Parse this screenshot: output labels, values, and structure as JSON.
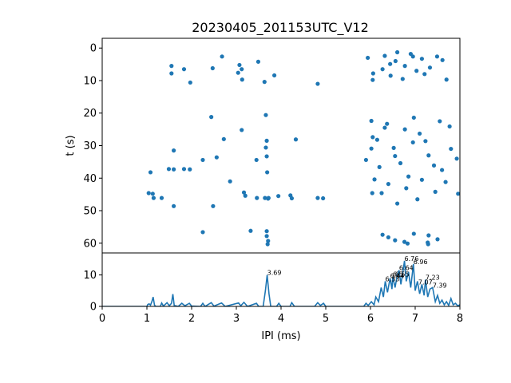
{
  "chart_data": {
    "title": "20230405_201153UTC_V12",
    "color": "#1f77b4",
    "panels": [
      {
        "type": "scatter",
        "ylabel": "t (s)",
        "xlim": [
          0,
          8
        ],
        "ylim": [
          63,
          -3
        ],
        "y_inverted": true,
        "yticks": [
          "0",
          "10",
          "20",
          "30",
          "40",
          "50",
          "60"
        ],
        "points": [
          [
            1.55,
            5.5
          ],
          [
            1.55,
            7.8
          ],
          [
            1.83,
            6.5
          ],
          [
            1.97,
            10.6
          ],
          [
            2.47,
            6.2
          ],
          [
            2.68,
            2.6
          ],
          [
            3.07,
            5.2
          ],
          [
            3.04,
            7.6
          ],
          [
            3.12,
            6.5
          ],
          [
            3.13,
            9.7
          ],
          [
            3.49,
            4.2
          ],
          [
            3.63,
            10.4
          ],
          [
            3.85,
            8.4
          ],
          [
            4.82,
            11.0
          ],
          [
            2.44,
            21.2
          ],
          [
            2.72,
            28.0
          ],
          [
            3.12,
            25.2
          ],
          [
            3.66,
            20.6
          ],
          [
            3.68,
            28.5
          ],
          [
            4.33,
            28.1
          ],
          [
            1.6,
            31.5
          ],
          [
            2.56,
            33.6
          ],
          [
            3.66,
            30.6
          ],
          [
            3.68,
            33.3
          ],
          [
            2.25,
            34.4
          ],
          [
            3.45,
            34.4
          ],
          [
            1.08,
            38.2
          ],
          [
            1.49,
            37.2
          ],
          [
            1.6,
            37.3
          ],
          [
            1.83,
            37.2
          ],
          [
            1.96,
            37.3
          ],
          [
            2.86,
            41.0
          ],
          [
            3.69,
            38.2
          ],
          [
            1.04,
            44.6
          ],
          [
            1.13,
            44.8
          ],
          [
            1.15,
            46.1
          ],
          [
            1.33,
            46.1
          ],
          [
            3.17,
            44.4
          ],
          [
            3.2,
            45.4
          ],
          [
            3.46,
            46.1
          ],
          [
            3.64,
            46.1
          ],
          [
            3.94,
            45.5
          ],
          [
            4.21,
            45.3
          ],
          [
            4.24,
            46.2
          ],
          [
            4.82,
            46.1
          ],
          [
            4.94,
            46.2
          ],
          [
            1.6,
            48.6
          ],
          [
            2.48,
            48.6
          ],
          [
            3.72,
            46.1
          ],
          [
            3.71,
            46.3
          ],
          [
            2.25,
            56.6
          ],
          [
            3.32,
            56.2
          ],
          [
            3.68,
            56.3
          ],
          [
            3.68,
            57.8
          ],
          [
            3.71,
            59.3
          ],
          [
            3.7,
            60.3
          ],
          [
            5.94,
            3.0
          ],
          [
            6.06,
            7.8
          ],
          [
            6.05,
            9.8
          ],
          [
            6.32,
            2.4
          ],
          [
            6.6,
            1.3
          ],
          [
            6.95,
            2.6
          ],
          [
            7.15,
            3.3
          ],
          [
            7.49,
            2.6
          ],
          [
            7.7,
            9.7
          ],
          [
            6.27,
            6.5
          ],
          [
            6.44,
            4.9
          ],
          [
            6.77,
            5.5
          ],
          [
            7.03,
            7.0
          ],
          [
            7.33,
            6.0
          ],
          [
            6.72,
            9.5
          ],
          [
            6.45,
            8.5
          ],
          [
            6.56,
            4.0
          ],
          [
            7.61,
            3.7
          ],
          [
            6.9,
            1.8
          ],
          [
            7.21,
            8.0
          ],
          [
            5.9,
            34.4
          ],
          [
            6.02,
            22.4
          ],
          [
            6.05,
            27.4
          ],
          [
            6.02,
            30.9
          ],
          [
            6.09,
            40.4
          ],
          [
            6.04,
            44.6
          ],
          [
            6.37,
            23.3
          ],
          [
            6.52,
            30.7
          ],
          [
            6.77,
            25.0
          ],
          [
            6.97,
            21.4
          ],
          [
            7.23,
            28.6
          ],
          [
            7.55,
            22.5
          ],
          [
            7.77,
            24.1
          ],
          [
            7.8,
            31.0
          ],
          [
            7.93,
            34.0
          ],
          [
            7.96,
            44.8
          ],
          [
            6.25,
            44.6
          ],
          [
            6.67,
            35.4
          ],
          [
            7.15,
            40.5
          ],
          [
            7.45,
            44.2
          ],
          [
            7.6,
            37.5
          ],
          [
            6.4,
            41.8
          ],
          [
            6.85,
            39.5
          ],
          [
            7.3,
            33.0
          ],
          [
            7.05,
            46.5
          ],
          [
            6.6,
            47.8
          ],
          [
            6.2,
            36.6
          ],
          [
            6.15,
            28.2
          ],
          [
            6.95,
            29.0
          ],
          [
            7.42,
            36.1
          ],
          [
            6.32,
            24.5
          ],
          [
            6.55,
            33.2
          ],
          [
            7.68,
            41.2
          ],
          [
            6.8,
            43.1
          ],
          [
            7.1,
            26.3
          ],
          [
            6.27,
            57.4
          ],
          [
            6.4,
            58.2
          ],
          [
            6.55,
            59.1
          ],
          [
            6.76,
            59.6
          ],
          [
            6.97,
            57.1
          ],
          [
            7.3,
            57.6
          ],
          [
            7.5,
            58.8
          ],
          [
            7.29,
            60.3
          ],
          [
            6.83,
            60.1
          ],
          [
            7.28,
            59.8
          ]
        ]
      },
      {
        "type": "line",
        "xlabel": "IPI (ms)",
        "xlim": [
          0,
          8
        ],
        "ylim": [
          0,
          17
        ],
        "xticks": [
          "0",
          "1",
          "2",
          "3",
          "4",
          "5",
          "6",
          "7",
          "8"
        ],
        "yticks": [
          "0",
          "10"
        ],
        "series_points": [
          [
            0,
            0
          ],
          [
            1.0,
            0
          ],
          [
            1.02,
            0.6
          ],
          [
            1.05,
            0.8
          ],
          [
            1.08,
            0.4
          ],
          [
            1.11,
            1.5
          ],
          [
            1.14,
            3.0
          ],
          [
            1.17,
            0.4
          ],
          [
            1.2,
            0
          ],
          [
            1.3,
            0
          ],
          [
            1.33,
            1.1
          ],
          [
            1.37,
            0.1
          ],
          [
            1.45,
            1.2
          ],
          [
            1.5,
            0.2
          ],
          [
            1.55,
            1.0
          ],
          [
            1.58,
            3.9
          ],
          [
            1.61,
            0.3
          ],
          [
            1.7,
            0
          ],
          [
            1.78,
            1.0
          ],
          [
            1.85,
            0.2
          ],
          [
            1.95,
            1.0
          ],
          [
            2.0,
            0.1
          ],
          [
            2.2,
            0
          ],
          [
            2.25,
            1.0
          ],
          [
            2.3,
            0
          ],
          [
            2.44,
            1.2
          ],
          [
            2.5,
            0.1
          ],
          [
            2.67,
            1.1
          ],
          [
            2.75,
            0
          ],
          [
            3.05,
            1.1
          ],
          [
            3.1,
            0.2
          ],
          [
            3.17,
            1.3
          ],
          [
            3.25,
            0
          ],
          [
            3.45,
            1.0
          ],
          [
            3.5,
            0
          ],
          [
            3.6,
            0
          ],
          [
            3.65,
            5.0
          ],
          [
            3.69,
            10.0
          ],
          [
            3.73,
            4.0
          ],
          [
            3.77,
            0
          ],
          [
            3.9,
            0
          ],
          [
            3.95,
            1.0
          ],
          [
            4.0,
            0
          ],
          [
            4.2,
            0
          ],
          [
            4.24,
            1.2
          ],
          [
            4.3,
            0
          ],
          [
            4.75,
            0
          ],
          [
            4.82,
            1.2
          ],
          [
            4.88,
            0.3
          ],
          [
            4.95,
            1.0
          ],
          [
            5.0,
            0
          ],
          [
            5.85,
            0
          ],
          [
            5.9,
            1.0
          ],
          [
            5.95,
            0.3
          ],
          [
            6.02,
            1.5
          ],
          [
            6.08,
            0.5
          ],
          [
            6.12,
            3.0
          ],
          [
            6.18,
            1.5
          ],
          [
            6.24,
            6.0
          ],
          [
            6.29,
            3.0
          ],
          [
            6.33,
            8.0
          ],
          [
            6.38,
            4.5
          ],
          [
            6.44,
            9.0
          ],
          [
            6.48,
            5.5
          ],
          [
            6.5,
            9.5
          ],
          [
            6.55,
            6.0
          ],
          [
            6.6,
            10.0
          ],
          [
            6.64,
            11.5
          ],
          [
            6.68,
            7.0
          ],
          [
            6.72,
            10.5
          ],
          [
            6.76,
            14.5
          ],
          [
            6.8,
            8.0
          ],
          [
            6.85,
            11.0
          ],
          [
            6.9,
            6.0
          ],
          [
            6.96,
            13.5
          ],
          [
            7.0,
            5.0
          ],
          [
            7.05,
            8.0
          ],
          [
            7.1,
            4.0
          ],
          [
            7.15,
            7.0
          ],
          [
            7.2,
            3.5
          ],
          [
            7.23,
            8.5
          ],
          [
            7.28,
            3.0
          ],
          [
            7.33,
            5.5
          ],
          [
            7.39,
            6.0
          ],
          [
            7.45,
            1.5
          ],
          [
            7.5,
            3.5
          ],
          [
            7.55,
            1.0
          ],
          [
            7.6,
            2.0
          ],
          [
            7.65,
            0.5
          ],
          [
            7.7,
            1.5
          ],
          [
            7.75,
            0.3
          ],
          [
            7.8,
            2.5
          ],
          [
            7.85,
            0.5
          ],
          [
            7.9,
            1.0
          ],
          [
            7.95,
            0.2
          ],
          [
            8.0,
            0.5
          ]
        ],
        "annotations": [
          {
            "x": 3.69,
            "y": 10.0,
            "text": "3.69"
          },
          {
            "x": 6.33,
            "y": 8.0,
            "text": "6.33"
          },
          {
            "x": 6.44,
            "y": 9.0,
            "text": "6.44"
          },
          {
            "x": 6.5,
            "y": 9.5,
            "text": "6.5"
          },
          {
            "x": 6.55,
            "y": 9.5,
            "text": "6.55"
          },
          {
            "x": 6.64,
            "y": 11.5,
            "text": "6.64"
          },
          {
            "x": 6.76,
            "y": 14.5,
            "text": "6.76"
          },
          {
            "x": 6.96,
            "y": 13.5,
            "text": "6.96"
          },
          {
            "x": 7.07,
            "y": 7.0,
            "text": "7.07"
          },
          {
            "x": 7.23,
            "y": 8.5,
            "text": "7.23"
          },
          {
            "x": 7.39,
            "y": 6.0,
            "text": "7.39"
          }
        ]
      }
    ]
  }
}
